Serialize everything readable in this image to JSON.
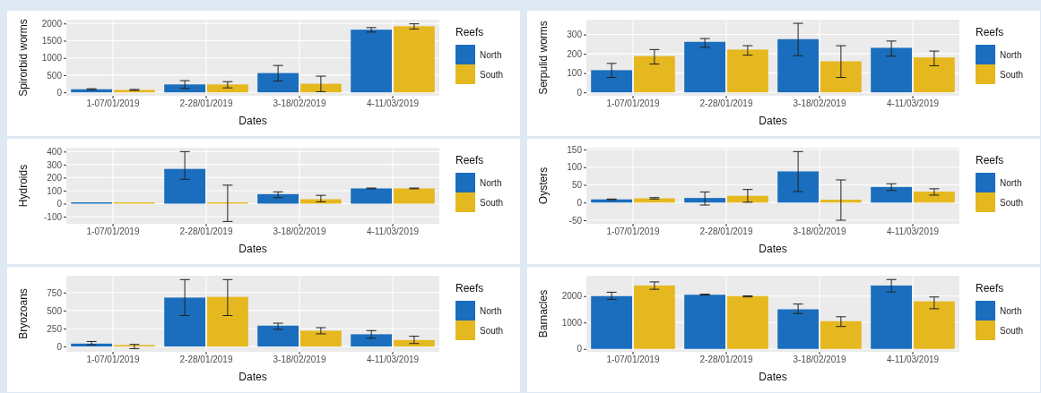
{
  "chart_data": [
    {
      "type": "bar",
      "xlabel": "Dates",
      "ylabel": "Spirorbid worms",
      "legend_title": "Reefs",
      "legend": "right",
      "grid": true,
      "categories": [
        "1-07/01/2019",
        "2-28/01/2019",
        "3-18/02/2019",
        "4-11/03/2019"
      ],
      "ylim": [
        -100,
        2110
      ],
      "yticks": [
        0,
        500,
        1000,
        1500,
        2000
      ],
      "series": [
        {
          "name": "North",
          "color": "#1a6ebd",
          "values": [
            90,
            230,
            560,
            1820
          ],
          "errors": [
            [
              75,
              105
            ],
            [
              110,
              340
            ],
            [
              330,
              780
            ],
            [
              1750,
              1880
            ]
          ]
        },
        {
          "name": "South",
          "color": "#e6b820",
          "values": [
            70,
            230,
            250,
            1920
          ],
          "errors": [
            [
              55,
              85
            ],
            [
              130,
              310
            ],
            [
              20,
              470
            ],
            [
              1840,
              1990
            ]
          ]
        }
      ]
    },
    {
      "type": "bar",
      "xlabel": "Dates",
      "ylabel": "Serpulid worms",
      "legend_title": "Reefs",
      "legend": "right",
      "grid": true,
      "categories": [
        "1-07/01/2019",
        "2-28/01/2019",
        "3-18/02/2019",
        "4-11/03/2019"
      ],
      "ylim": [
        -18,
        377
      ],
      "yticks": [
        0,
        100,
        200,
        300
      ],
      "series": [
        {
          "name": "North",
          "color": "#1a6ebd",
          "values": [
            115,
            262,
            276,
            231
          ],
          "errors": [
            [
              77,
              150
            ],
            [
              233,
              279
            ],
            [
              190,
              358
            ],
            [
              188,
              266
            ]
          ]
        },
        {
          "name": "South",
          "color": "#e6b820",
          "values": [
            188,
            222,
            161,
            181
          ],
          "errors": [
            [
              147,
              222
            ],
            [
              193,
              242
            ],
            [
              77,
              242
            ],
            [
              138,
              214
            ]
          ]
        }
      ]
    },
    {
      "type": "bar",
      "xlabel": "Dates",
      "ylabel": "Hydroids",
      "legend_title": "Reefs",
      "legend": "right",
      "grid": true,
      "categories": [
        "1-07/01/2019",
        "2-28/01/2019",
        "3-18/02/2019",
        "4-11/03/2019"
      ],
      "ylim": [
        -155,
        430
      ],
      "yticks": [
        -100,
        0,
        100,
        200,
        300,
        400
      ],
      "series": [
        {
          "name": "North",
          "color": "#1a6ebd",
          "values": [
            10,
            267,
            73,
            117
          ],
          "errors": [
            null,
            [
              187,
              400
            ],
            [
              46,
              91
            ],
            [
              114,
              120
            ]
          ]
        },
        {
          "name": "South",
          "color": "#e6b820",
          "values": [
            10,
            10,
            34,
            117
          ],
          "errors": [
            null,
            [
              -137,
              142
            ],
            [
              14,
              64
            ],
            [
              114,
              120
            ]
          ]
        }
      ]
    },
    {
      "type": "bar",
      "xlabel": "Dates",
      "ylabel": "Oysters",
      "legend_title": "Reefs",
      "legend": "right",
      "grid": true,
      "categories": [
        "1-07/01/2019",
        "2-28/01/2019",
        "3-18/02/2019",
        "4-11/03/2019"
      ],
      "ylim": [
        -60,
        155
      ],
      "yticks": [
        -50,
        0,
        50,
        100,
        150
      ],
      "series": [
        {
          "name": "North",
          "color": "#1a6ebd",
          "values": [
            9,
            13,
            88,
            44
          ],
          "errors": [
            [
              8,
              10
            ],
            [
              -7,
              30
            ],
            [
              31,
              144
            ],
            [
              34,
              53
            ]
          ]
        },
        {
          "name": "South",
          "color": "#e6b820",
          "values": [
            12,
            19,
            8,
            31
          ],
          "errors": [
            [
              10,
              14
            ],
            [
              1,
              37
            ],
            [
              -50,
              64
            ],
            [
              21,
              39
            ]
          ]
        }
      ]
    },
    {
      "type": "bar",
      "xlabel": "Dates",
      "ylabel": "Bryozoans",
      "legend_title": "Reefs",
      "legend": "right",
      "grid": true,
      "categories": [
        "1-07/01/2019",
        "2-28/01/2019",
        "3-18/02/2019",
        "4-11/03/2019"
      ],
      "ylim": [
        -74,
        984
      ],
      "yticks": [
        0,
        250,
        500,
        750
      ],
      "series": [
        {
          "name": "North",
          "color": "#1a6ebd",
          "values": [
            40,
            680,
            290,
            170
          ],
          "errors": [
            [
              25,
              70
            ],
            [
              430,
              930
            ],
            [
              238,
              324
            ],
            [
              115,
              221
            ]
          ]
        },
        {
          "name": "South",
          "color": "#e6b820",
          "values": [
            20,
            690,
            220,
            90
          ],
          "errors": [
            [
              -29,
              29
            ],
            [
              430,
              930
            ],
            [
              176,
              262
            ],
            [
              41,
              143
            ]
          ]
        }
      ]
    },
    {
      "type": "bar",
      "xlabel": "Dates",
      "ylabel": "Barnacles",
      "legend_title": "Reefs",
      "legend": "right",
      "grid": true,
      "categories": [
        "1-07/01/2019",
        "2-28/01/2019",
        "3-18/02/2019",
        "4-11/03/2019"
      ],
      "ylim": [
        -110,
        2770
      ],
      "yticks": [
        0,
        1000,
        2000
      ],
      "series": [
        {
          "name": "North",
          "color": "#1a6ebd",
          "values": [
            2000,
            2050,
            1500,
            2400
          ],
          "errors": [
            [
              1877,
              2145
            ],
            [
              2041,
              2071
            ],
            [
              1341,
              1698
            ],
            [
              2156,
              2626
            ]
          ]
        },
        {
          "name": "South",
          "color": "#e6b820",
          "values": [
            2400,
            2000,
            1050,
            1800
          ],
          "errors": [
            [
              2257,
              2536
            ],
            [
              1969,
              2009
            ],
            [
              849,
              1218
            ],
            [
              1520,
              1966
            ]
          ]
        }
      ]
    }
  ]
}
